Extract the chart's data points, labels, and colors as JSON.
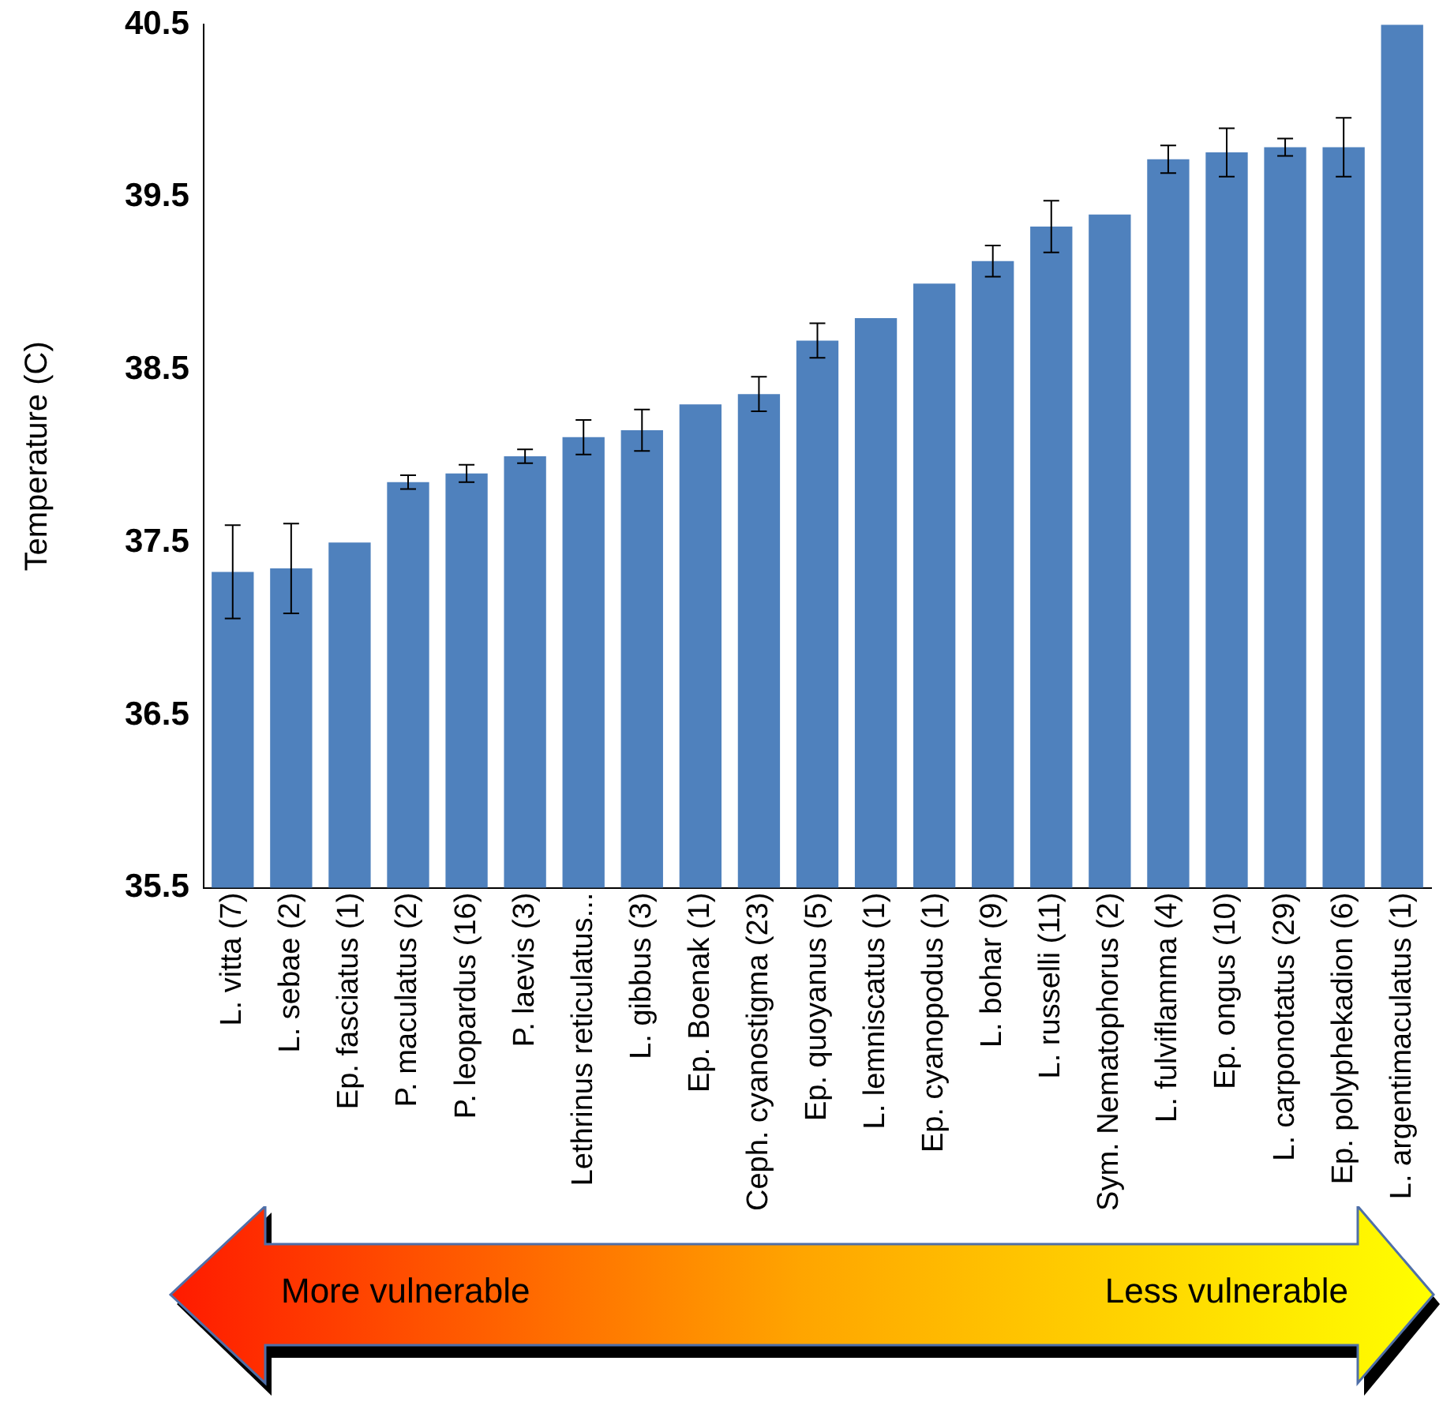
{
  "chart_data": {
    "type": "bar",
    "ylabel": "Temperature (C)",
    "categories": [
      "L. vitta (7)",
      "L. sebae (2)",
      "Ep. fasciatus (1)",
      "P. maculatus (2)",
      "P. leopardus (16)",
      "P. laevis (3)",
      "Lethrinus reticulatus...",
      "L. gibbus (3)",
      "Ep. Boenak (1)",
      "Ceph. cyanostigma (23)",
      "Ep. quoyanus (5)",
      "L. lemniscatus (1)",
      "Ep. cyanopodus (1)",
      "L. bohar (9)",
      "L. russelli (11)",
      "Sym. Nematophorus (2)",
      "L. fulviflamma (4)",
      "Ep. ongus (10)",
      "L. carponotatus (29)",
      "Ep. polyphekadion (6)",
      "L. argentimaculatus (1)"
    ],
    "values": [
      37.33,
      37.35,
      37.5,
      37.85,
      37.9,
      38.0,
      38.11,
      38.15,
      38.3,
      38.36,
      38.67,
      38.8,
      39.0,
      39.13,
      39.33,
      39.4,
      39.72,
      39.76,
      39.79,
      39.79,
      40.5
    ],
    "errors": [
      0.27,
      0.26,
      null,
      0.04,
      0.05,
      0.04,
      0.1,
      0.12,
      null,
      0.1,
      0.1,
      null,
      null,
      0.09,
      0.15,
      null,
      0.08,
      0.14,
      0.05,
      0.17,
      null
    ],
    "color": "#4f81bd",
    "ylim": [
      35.5,
      40.5
    ],
    "yticks": [
      35.5,
      36.5,
      37.5,
      38.5,
      39.5,
      40.5
    ],
    "grid": false,
    "legend": false,
    "annotations": [
      "More vulnerable",
      "Less vulnerable"
    ]
  }
}
